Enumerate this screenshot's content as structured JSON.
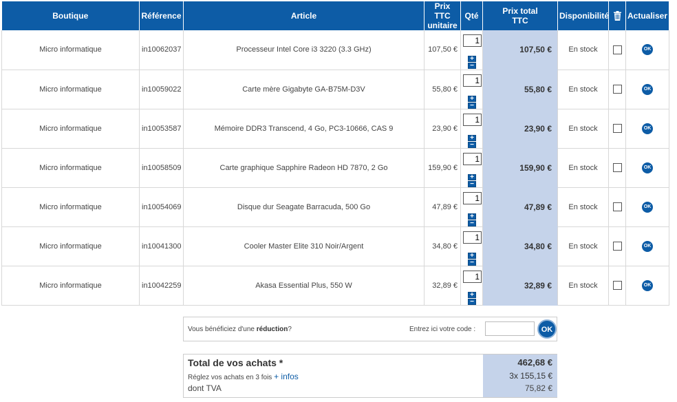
{
  "header": {
    "boutique": "Boutique",
    "reference": "Référence",
    "article": "Article",
    "unit_price_line1": "Prix TTC",
    "unit_price_line2": "unitaire",
    "qty": "Qté",
    "total_price_line1": "Prix total",
    "total_price_line2": "TTC",
    "availability": "Disponibilité",
    "delete_icon": "trash-icon",
    "update": "Actualiser"
  },
  "items": [
    {
      "shop": "Micro informatique",
      "ref": "in10062037",
      "article": "Processeur Intel Core i3 3220 (3.3 GHz)",
      "unit_price": "107,50 €",
      "qty": "1",
      "total": "107,50 €",
      "availability": "En stock",
      "ok": "OK"
    },
    {
      "shop": "Micro informatique",
      "ref": "in10059022",
      "article": "Carte mère Gigabyte GA-B75M-D3V",
      "unit_price": "55,80 €",
      "qty": "1",
      "total": "55,80 €",
      "availability": "En stock",
      "ok": "OK"
    },
    {
      "shop": "Micro informatique",
      "ref": "in10053587",
      "article": "Mémoire DDR3 Transcend, 4 Go, PC3-10666, CAS 9",
      "unit_price": "23,90 €",
      "qty": "1",
      "total": "23,90 €",
      "availability": "En stock",
      "ok": "OK"
    },
    {
      "shop": "Micro informatique",
      "ref": "in10058509",
      "article": "Carte graphique Sapphire Radeon HD 7870, 2 Go",
      "unit_price": "159,90 €",
      "qty": "1",
      "total": "159,90 €",
      "availability": "En stock",
      "ok": "OK"
    },
    {
      "shop": "Micro informatique",
      "ref": "in10054069",
      "article": "Disque dur Seagate Barracuda, 500 Go",
      "unit_price": "47,89 €",
      "qty": "1",
      "total": "47,89 €",
      "availability": "En stock",
      "ok": "OK"
    },
    {
      "shop": "Micro informatique",
      "ref": "in10041300",
      "article": "Cooler Master Elite 310 Noir/Argent",
      "unit_price": "34,80 €",
      "qty": "1",
      "total": "34,80 €",
      "availability": "En stock",
      "ok": "OK"
    },
    {
      "shop": "Micro informatique",
      "ref": "in10042259",
      "article": "Akasa Essential Plus, 550 W",
      "unit_price": "32,89 €",
      "qty": "1",
      "total": "32,89 €",
      "availability": "En stock",
      "ok": "OK"
    }
  ],
  "stepper": {
    "plus": "+",
    "minus": "−"
  },
  "reduction": {
    "lead_before": "Vous bénéficiez d'une ",
    "lead_bold": "réduction",
    "lead_after": "?",
    "code_label": "Entrez ici votre code :",
    "code_value": "",
    "ok": "OK"
  },
  "totals": {
    "label": "Total de vos achats *",
    "total": "462,68 €",
    "pay_label": "Réglez vos achats en 3 fois",
    "more_link": "+ infos",
    "pay_value": "3x  155,15 €",
    "tva_label": "dont TVA",
    "tva_value": "75,82 €"
  },
  "colors": {
    "header_bg": "#0d5ca6",
    "total_col_bg": "#c5d3ea",
    "button": "#0d5ca6"
  }
}
